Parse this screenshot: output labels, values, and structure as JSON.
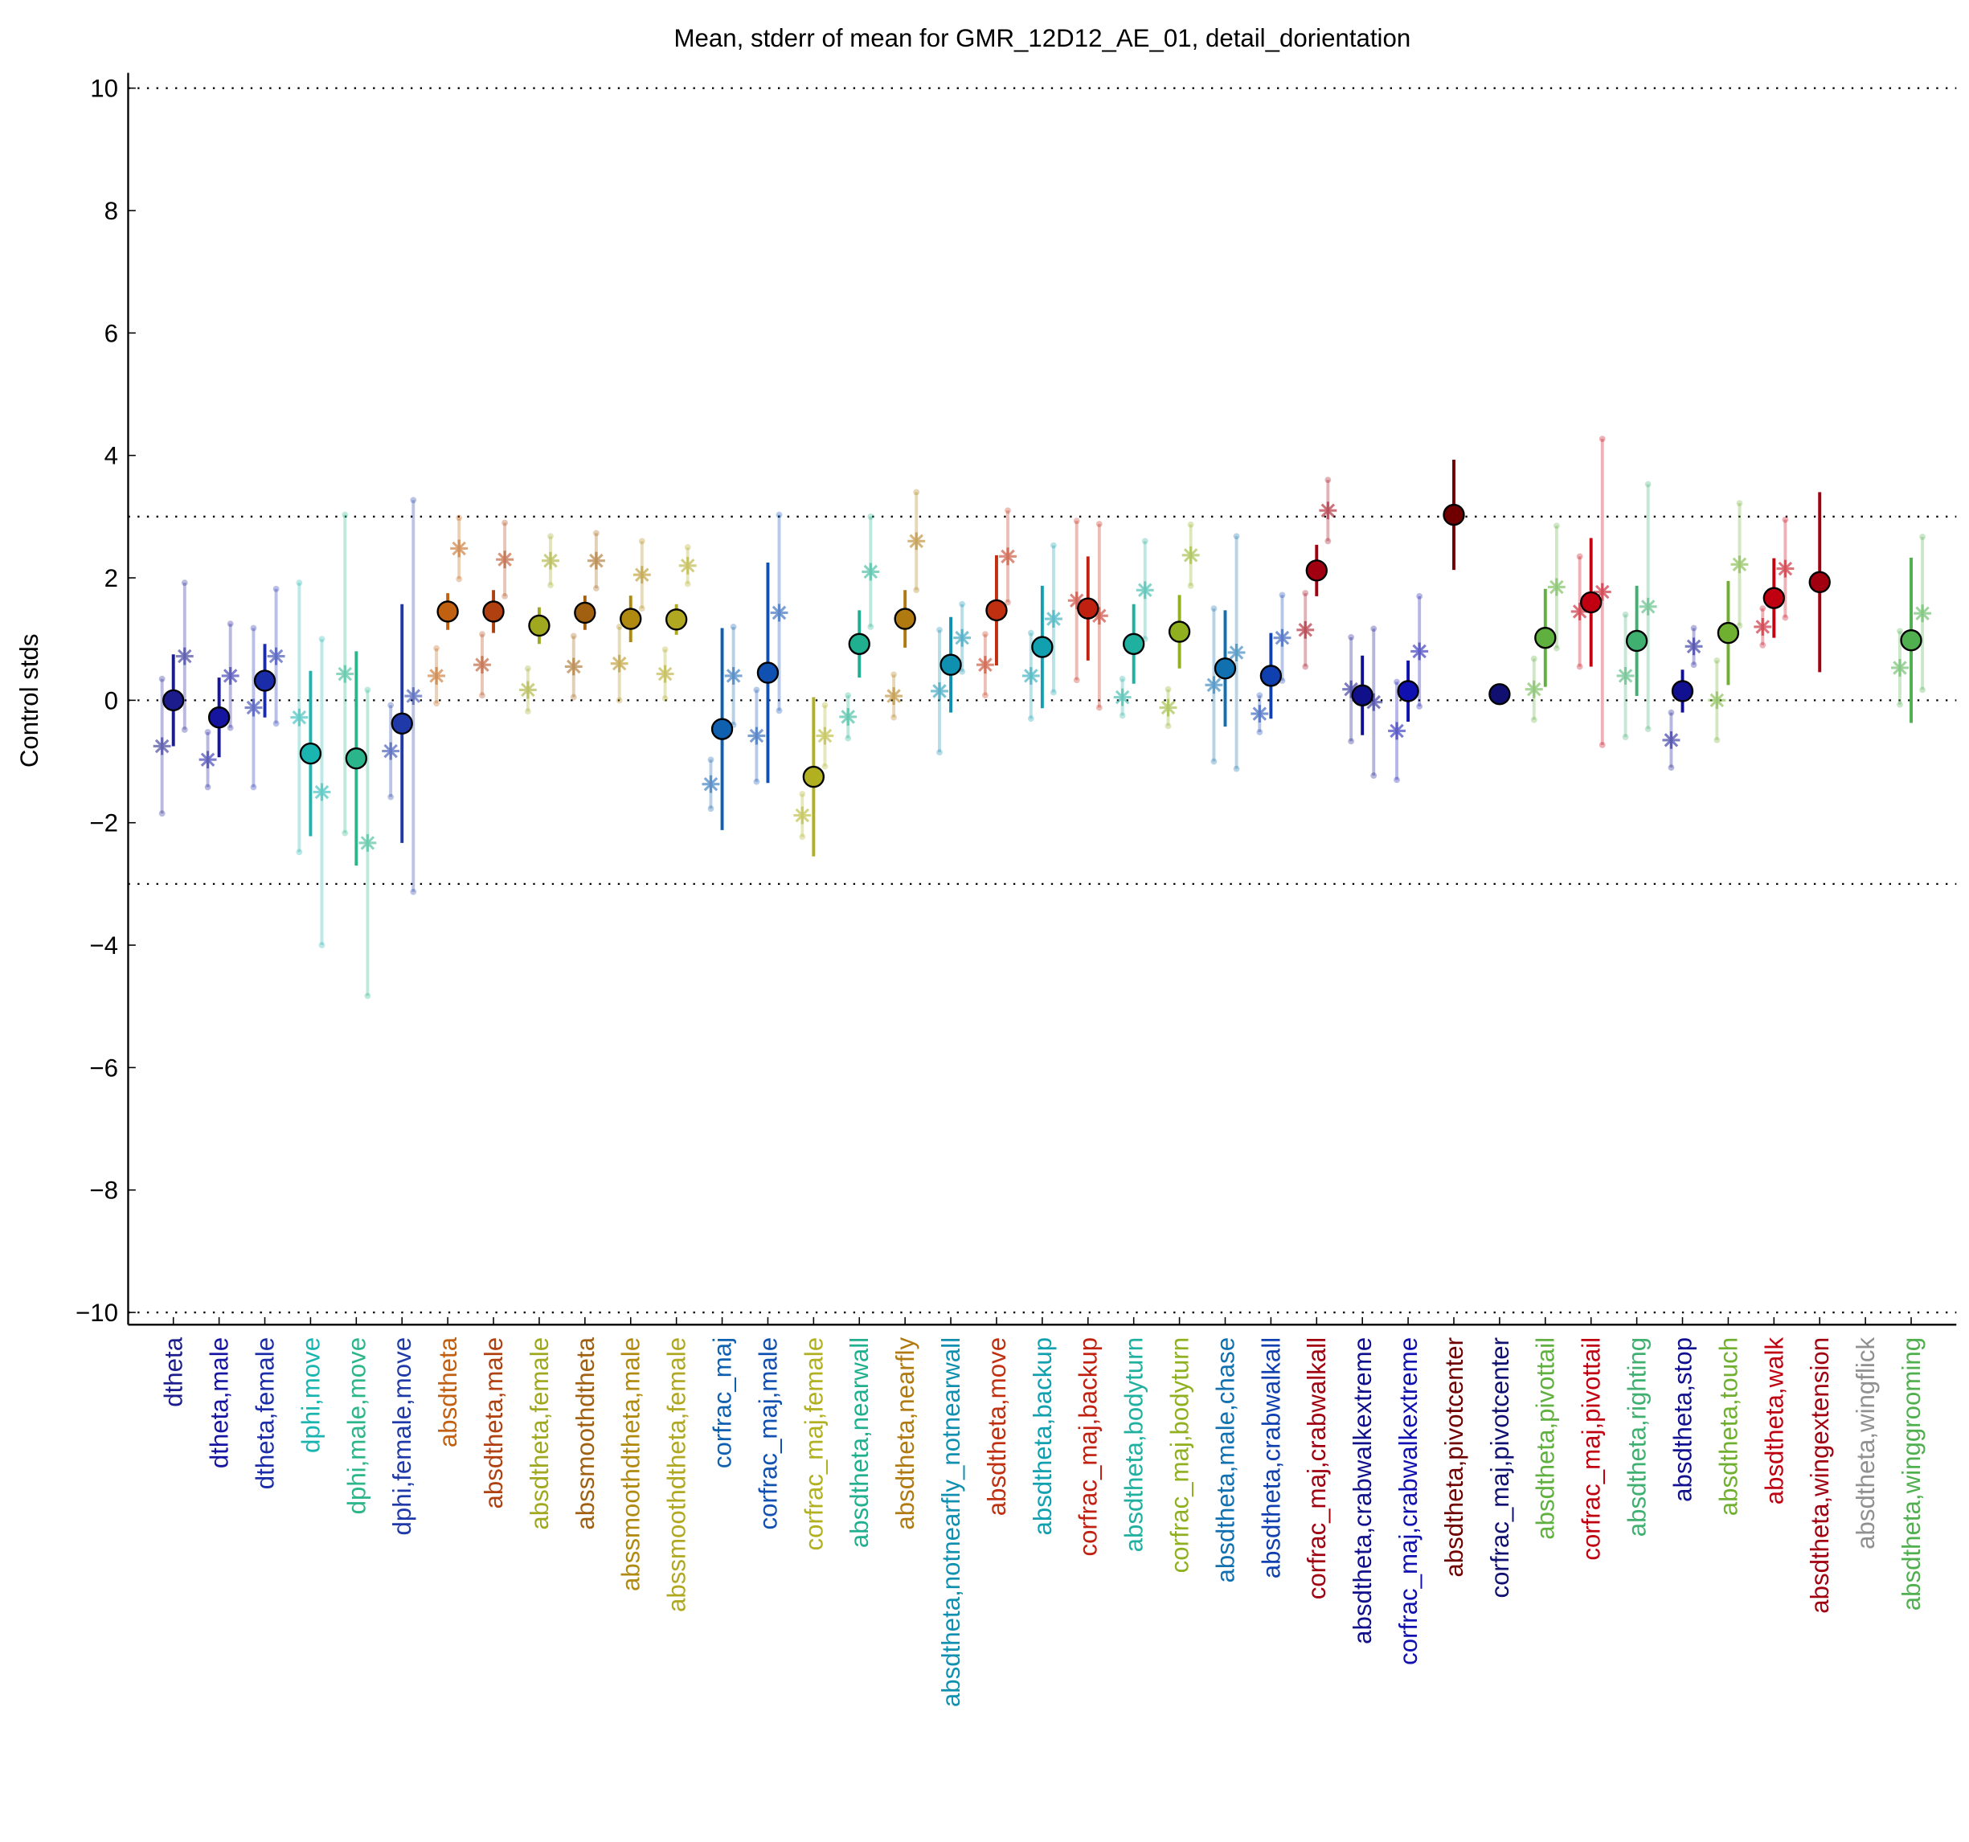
{
  "chart_data": {
    "type": "errorbar",
    "title": "Mean, stderr of mean for GMR_12D12_AE_01, detail_dorientation",
    "ylabel": "Control stds",
    "categories": [
      "dtheta",
      "dtheta,male",
      "dtheta,female",
      "dphi,move",
      "dphi,male,move",
      "dphi,female,move",
      "absdtheta",
      "absdtheta,male",
      "absdtheta,female",
      "abssmoothdtheta",
      "abssmoothdtheta,male",
      "abssmoothdtheta,female",
      "corfrac_maj",
      "corfrac_maj,male",
      "corfrac_maj,female",
      "absdtheta,nearwall",
      "absdtheta,nearfly",
      "absdtheta,notnearfly_notnearwall",
      "absdtheta,move",
      "absdtheta,backup",
      "corfrac_maj,backup",
      "absdtheta,bodyturn",
      "corfrac_maj,bodyturn",
      "absdtheta,male,chase",
      "absdtheta,crabwalkall",
      "corfrac_maj,crabwalkall",
      "absdtheta,crabwalkextreme",
      "corfrac_maj,crabwalkextreme",
      "absdtheta,pivotcenter",
      "corfrac_maj,pivotcenter",
      "absdtheta,pivottail",
      "corfrac_maj,pivottail",
      "absdtheta,righting",
      "absdtheta,stop",
      "absdtheta,touch",
      "absdtheta,walk",
      "absdtheta,wingextension",
      "absdtheta,wingflick",
      "absdtheta,winggrooming"
    ],
    "colors": [
      "#1c1c8c",
      "#1515a0",
      "#1a2ca8",
      "#1ab5b0",
      "#2ab58a",
      "#1f3aa8",
      "#c06010",
      "#b04010",
      "#a0a820",
      "#a06010",
      "#b08a10",
      "#b0a820",
      "#1060b0",
      "#1050b0",
      "#b0b020",
      "#20b090",
      "#b07a10",
      "#1090b0",
      "#c03010",
      "#10a0b0",
      "#c02010",
      "#20b0a0",
      "#90b020",
      "#1070b0",
      "#1040b0",
      "#a00010",
      "#10108a",
      "#1010b0",
      "#700000",
      "#101070",
      "#60b040",
      "#c00010",
      "#40b070",
      "#101090",
      "#70b030",
      "#c00010",
      "#a00010",
      "#909090",
      "#50b050"
    ],
    "mean": [
      0.0,
      -0.28,
      0.32,
      -0.87,
      -0.95,
      -0.38,
      1.45,
      1.45,
      1.22,
      1.43,
      1.33,
      1.32,
      -0.47,
      0.45,
      -1.25,
      0.92,
      1.33,
      0.58,
      1.47,
      0.87,
      1.5,
      0.92,
      1.12,
      0.52,
      0.4,
      2.12,
      0.08,
      0.15,
      3.03,
      0.1,
      1.02,
      1.6,
      0.97,
      0.15,
      1.1,
      1.67,
      1.93,
      null,
      0.98
    ],
    "mean_err": [
      0.75,
      0.65,
      0.6,
      1.35,
      1.75,
      1.95,
      0.3,
      0.35,
      0.3,
      0.28,
      0.38,
      0.25,
      1.65,
      1.8,
      1.3,
      0.55,
      0.47,
      0.78,
      0.9,
      1.0,
      0.85,
      0.65,
      0.6,
      0.95,
      0.7,
      0.42,
      0.65,
      0.5,
      0.9,
      0.05,
      0.8,
      1.05,
      0.9,
      0.35,
      0.85,
      0.65,
      1.47,
      null,
      1.35
    ],
    "star1": [
      -0.75,
      -0.97,
      -0.12,
      -0.28,
      0.43,
      -0.83,
      0.4,
      0.58,
      0.17,
      0.55,
      0.6,
      0.43,
      -1.37,
      -0.58,
      -1.88,
      -0.27,
      0.07,
      0.15,
      0.58,
      0.4,
      1.63,
      0.05,
      -0.12,
      0.25,
      -0.22,
      1.15,
      0.18,
      -0.5,
      null,
      null,
      0.18,
      1.45,
      0.4,
      -0.65,
      0.0,
      1.2,
      null,
      null,
      0.53
    ],
    "star1_err": [
      1.1,
      0.45,
      1.3,
      2.2,
      2.6,
      0.75,
      0.45,
      0.5,
      0.35,
      0.5,
      0.6,
      0.4,
      0.4,
      0.75,
      0.35,
      0.35,
      0.35,
      1.0,
      0.5,
      0.7,
      1.3,
      0.3,
      0.3,
      1.25,
      0.3,
      0.6,
      0.85,
      0.8,
      null,
      null,
      0.5,
      0.9,
      1.0,
      0.45,
      0.65,
      0.3,
      null,
      null,
      0.6
    ],
    "star2": [
      0.72,
      0.4,
      0.72,
      -1.5,
      -2.33,
      0.07,
      2.48,
      2.3,
      2.28,
      2.28,
      2.05,
      2.2,
      0.4,
      1.43,
      -0.58,
      2.1,
      2.6,
      1.02,
      2.35,
      1.33,
      1.38,
      1.8,
      2.37,
      0.78,
      1.02,
      3.1,
      -0.03,
      0.8,
      null,
      null,
      1.85,
      1.77,
      1.53,
      0.88,
      2.22,
      2.15,
      null,
      null,
      1.42
    ],
    "star2_err": [
      1.2,
      0.85,
      1.1,
      2.5,
      2.5,
      3.2,
      0.5,
      0.6,
      0.4,
      0.45,
      0.55,
      0.3,
      0.8,
      1.6,
      0.5,
      0.9,
      0.8,
      0.55,
      0.75,
      1.2,
      1.5,
      0.8,
      0.5,
      1.9,
      0.7,
      0.5,
      1.2,
      0.9,
      null,
      null,
      1.0,
      2.5,
      2.0,
      0.3,
      1.0,
      0.8,
      null,
      null,
      1.25
    ],
    "ylim": [
      -10.2,
      10.25
    ],
    "yticks": [
      {
        "value": -10,
        "label": "−10"
      },
      {
        "value": -8,
        "label": "−8"
      },
      {
        "value": -6,
        "label": "−6"
      },
      {
        "value": -4,
        "label": "−4"
      },
      {
        "value": -2,
        "label": "−2"
      },
      0,
      2,
      4,
      6,
      8,
      10
    ],
    "hlines": [
      10,
      3,
      0,
      -3,
      -10
    ]
  }
}
